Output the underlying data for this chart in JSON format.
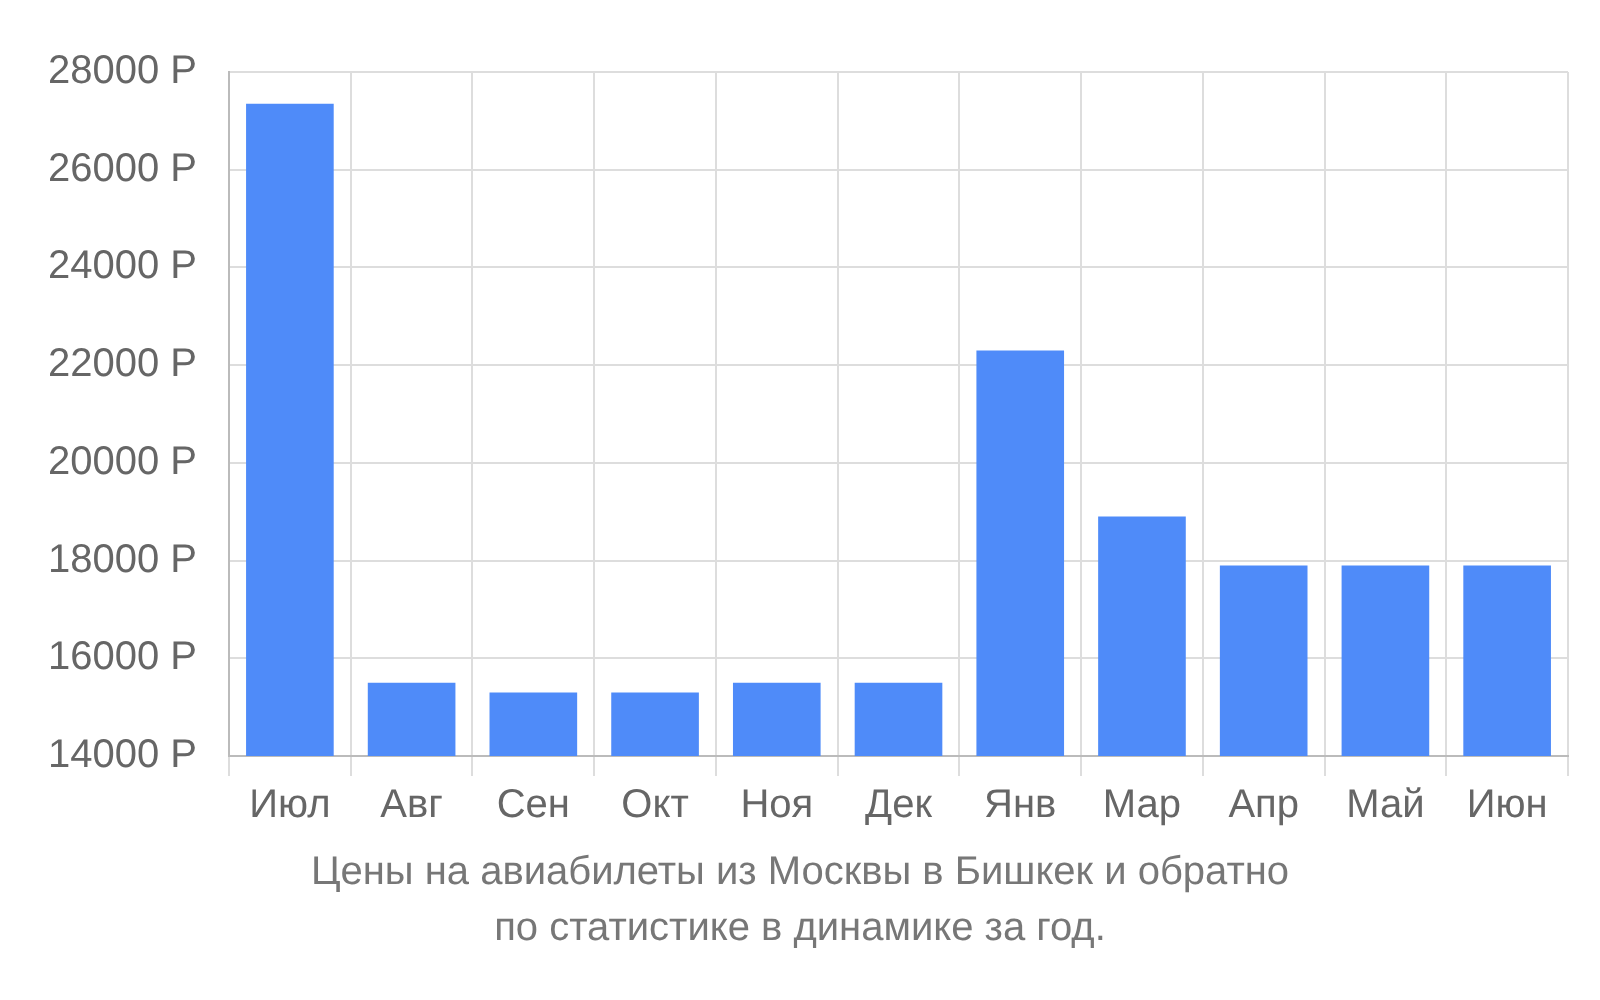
{
  "chart_data": {
    "type": "bar",
    "categories": [
      "Июл",
      "Авг",
      "Сен",
      "Окт",
      "Ноя",
      "Дек",
      "Янв",
      "Мар",
      "Апр",
      "Май",
      "Июн"
    ],
    "values": [
      27350,
      15500,
      15300,
      15300,
      15500,
      15500,
      22300,
      18900,
      17900,
      17900,
      17900
    ],
    "color": "#4f8bf9",
    "ylim": [
      14000,
      28000
    ],
    "yticks": [
      {
        "value": 14000,
        "label": "14000 Р"
      },
      {
        "value": 16000,
        "label": "16000 Р"
      },
      {
        "value": 18000,
        "label": "18000 Р"
      },
      {
        "value": 20000,
        "label": "20000 Р"
      },
      {
        "value": 22000,
        "label": "22000 Р"
      },
      {
        "value": 24000,
        "label": "24000 Р"
      },
      {
        "value": 26000,
        "label": "26000 Р"
      },
      {
        "value": 28000,
        "label": "28000 Р"
      }
    ],
    "grid": true,
    "annotations": [
      "Цены на авиабилеты из Москвы в Бишкек и обратно",
      "по статистике в динамике за год."
    ]
  }
}
